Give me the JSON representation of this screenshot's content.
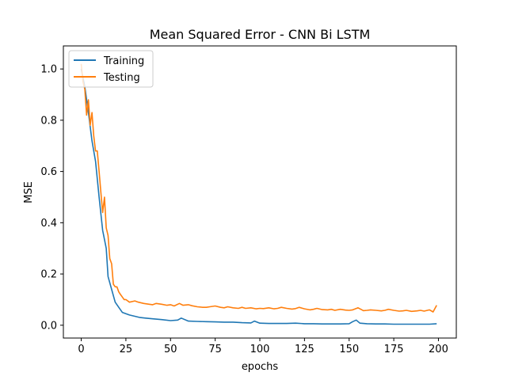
{
  "chart_data": {
    "type": "line",
    "title": "Mean Squared Error - CNN Bi LSTM",
    "xlabel": "epochs",
    "ylabel": "MSE",
    "xlim": [
      -10,
      210
    ],
    "ylim": [
      -0.05,
      1.09
    ],
    "xticks": [
      0,
      25,
      50,
      75,
      100,
      125,
      150,
      175,
      200
    ],
    "yticks": [
      0.0,
      0.2,
      0.4,
      0.6,
      0.8,
      1.0
    ],
    "ytick_labels": [
      "0.0",
      "0.2",
      "0.4",
      "0.6",
      "0.8",
      "1.0"
    ],
    "legend_position": "top-left",
    "grid": false,
    "series": [
      {
        "name": "Training",
        "color": "#1f77b4",
        "x": [
          0,
          2,
          4,
          6,
          8,
          10,
          12,
          14,
          15,
          17,
          19,
          21,
          23,
          25,
          27,
          30,
          33,
          36,
          40,
          45,
          50,
          54,
          56,
          60,
          65,
          70,
          75,
          80,
          85,
          90,
          95,
          97,
          100,
          105,
          110,
          115,
          120,
          125,
          130,
          135,
          140,
          145,
          150,
          152,
          154,
          156,
          160,
          165,
          170,
          175,
          180,
          185,
          190,
          195,
          199
        ],
        "y": [
          1.0,
          0.93,
          0.83,
          0.72,
          0.64,
          0.5,
          0.37,
          0.3,
          0.19,
          0.14,
          0.09,
          0.07,
          0.05,
          0.045,
          0.04,
          0.035,
          0.03,
          0.028,
          0.025,
          0.022,
          0.018,
          0.02,
          0.028,
          0.016,
          0.015,
          0.014,
          0.013,
          0.012,
          0.012,
          0.01,
          0.009,
          0.016,
          0.008,
          0.007,
          0.007,
          0.007,
          0.008,
          0.006,
          0.006,
          0.005,
          0.005,
          0.005,
          0.006,
          0.014,
          0.02,
          0.008,
          0.006,
          0.005,
          0.005,
          0.004,
          0.004,
          0.004,
          0.004,
          0.004,
          0.006
        ]
      },
      {
        "name": "Testing",
        "color": "#ff7f0e",
        "x": [
          0,
          1,
          2,
          3,
          4,
          5,
          6,
          7,
          8,
          9,
          10,
          11,
          12,
          13,
          14,
          15,
          16,
          17,
          18,
          19,
          20,
          21,
          22,
          23,
          24,
          25,
          27,
          30,
          32,
          35,
          38,
          40,
          42,
          45,
          48,
          50,
          52,
          55,
          57,
          60,
          62,
          65,
          68,
          70,
          72,
          75,
          78,
          80,
          82,
          85,
          88,
          90,
          92,
          95,
          98,
          100,
          102,
          105,
          108,
          110,
          112,
          115,
          118,
          120,
          122,
          125,
          128,
          130,
          132,
          135,
          138,
          140,
          142,
          145,
          148,
          150,
          152,
          155,
          158,
          160,
          162,
          165,
          168,
          170,
          172,
          175,
          178,
          180,
          182,
          185,
          188,
          190,
          192,
          195,
          197,
          199
        ],
        "y": [
          1.02,
          0.95,
          0.92,
          0.82,
          0.88,
          0.78,
          0.83,
          0.74,
          0.68,
          0.68,
          0.6,
          0.52,
          0.44,
          0.5,
          0.38,
          0.35,
          0.26,
          0.24,
          0.16,
          0.15,
          0.15,
          0.13,
          0.12,
          0.11,
          0.1,
          0.1,
          0.09,
          0.095,
          0.09,
          0.085,
          0.082,
          0.08,
          0.085,
          0.082,
          0.078,
          0.08,
          0.075,
          0.085,
          0.078,
          0.08,
          0.076,
          0.072,
          0.07,
          0.07,
          0.072,
          0.075,
          0.07,
          0.068,
          0.072,
          0.068,
          0.066,
          0.07,
          0.066,
          0.068,
          0.064,
          0.066,
          0.065,
          0.068,
          0.064,
          0.066,
          0.07,
          0.066,
          0.063,
          0.065,
          0.07,
          0.064,
          0.06,
          0.062,
          0.066,
          0.061,
          0.06,
          0.062,
          0.058,
          0.062,
          0.059,
          0.058,
          0.06,
          0.068,
          0.057,
          0.058,
          0.06,
          0.058,
          0.056,
          0.058,
          0.062,
          0.058,
          0.055,
          0.056,
          0.058,
          0.054,
          0.056,
          0.058,
          0.055,
          0.06,
          0.052,
          0.078
        ]
      }
    ]
  }
}
